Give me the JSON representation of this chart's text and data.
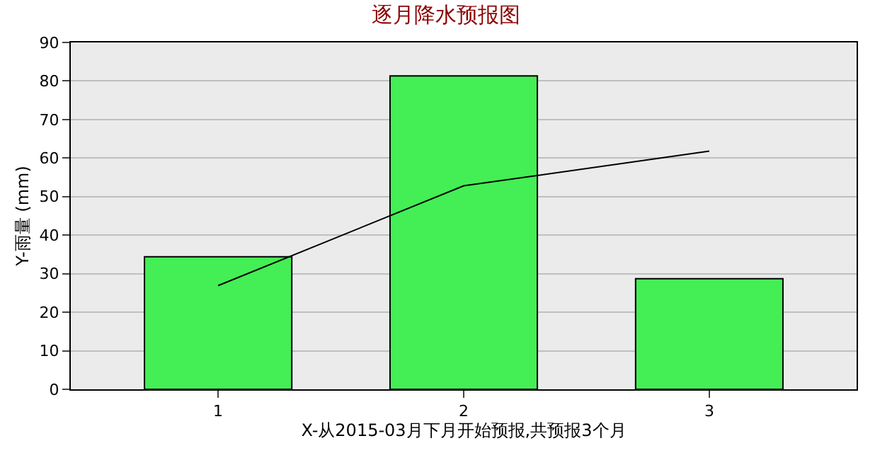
{
  "chart_data": {
    "type": "bar",
    "title": "逐月降水预报图",
    "xlabel": "X-从2015-03月下月开始预报,共预报3个月",
    "ylabel": "Y-雨量 (mm)",
    "categories": [
      "1",
      "2",
      "3"
    ],
    "series": [
      {
        "color": "#44ee55",
        "values": [
          34.4,
          81.3,
          28.7
        ]
      },
      {
        "type": "line",
        "color": "#000000",
        "values": [
          26.9,
          52.8,
          61.8
        ]
      }
    ],
    "ylim": [
      0,
      90
    ],
    "yticks": [
      0,
      10,
      20,
      30,
      40,
      50,
      60,
      70,
      80,
      90
    ],
    "grid": "y",
    "legend": false,
    "marker": "none",
    "line_style": "solid"
  }
}
